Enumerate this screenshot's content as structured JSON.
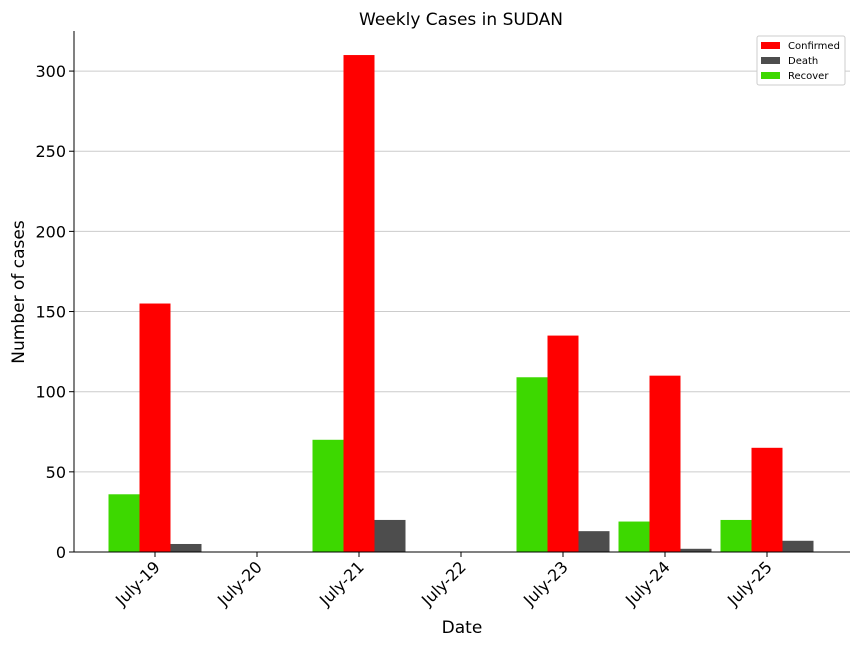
{
  "chart_data": {
    "type": "bar",
    "title": "Weekly Cases in SUDAN",
    "xlabel": "Date",
    "ylabel": "Number of cases",
    "categories": [
      "July-19",
      "July-20",
      "July-21",
      "July-22",
      "July-23",
      "July-24",
      "July-25"
    ],
    "series": [
      {
        "name": "Recover",
        "color": "#3dd800",
        "values": [
          36,
          0,
          70,
          0,
          109,
          19,
          20
        ]
      },
      {
        "name": "Confirmed",
        "color": "#ff0000",
        "values": [
          155,
          0,
          310,
          0,
          135,
          110,
          65
        ]
      },
      {
        "name": "Death",
        "color": "#4d4d4d",
        "values": [
          5,
          0,
          20,
          0,
          13,
          2,
          7
        ]
      }
    ],
    "legend_order": [
      "Confirmed",
      "Death",
      "Recover"
    ],
    "ylim": [
      0,
      325
    ],
    "yticks": [
      0,
      50,
      100,
      150,
      200,
      250,
      300
    ],
    "grid": "horizontal",
    "legend_position": "top-right"
  }
}
